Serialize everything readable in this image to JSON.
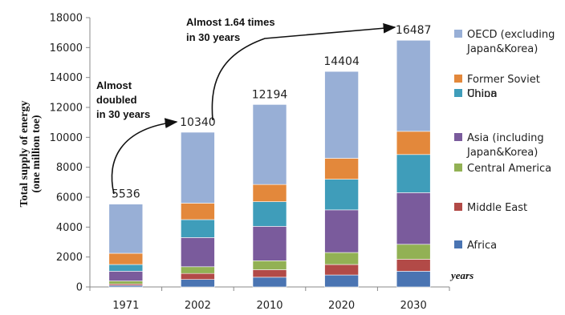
{
  "chart_data": {
    "type": "bar",
    "stacked": true,
    "categories": [
      "1971",
      "2002",
      "2010",
      "2020",
      "2030"
    ],
    "ylabel": "Total supply of energy (one million toe)",
    "ylim": [
      0,
      18000
    ],
    "yticks": [
      0,
      2000,
      4000,
      6000,
      8000,
      10000,
      12000,
      14000,
      16000,
      18000
    ],
    "series": [
      {
        "name": "Africa",
        "color": "#4a74b2",
        "values": [
          100,
          500,
          650,
          800,
          1050
        ]
      },
      {
        "name": "Middle East",
        "color": "#b24a47",
        "values": [
          100,
          400,
          500,
          700,
          800
        ]
      },
      {
        "name": "Central America",
        "color": "#92b154",
        "values": [
          200,
          450,
          600,
          800,
          1000
        ]
      },
      {
        "name": "Asia (including Japan&Korea)",
        "color": "#7a5b9c",
        "values": [
          650,
          1950,
          2300,
          2850,
          3450
        ]
      },
      {
        "name": "China",
        "color": "#3f9dba",
        "values": [
          450,
          1200,
          1650,
          2050,
          2550
        ]
      },
      {
        "name": "Former Soviet Union",
        "color": "#e3883b",
        "values": [
          750,
          1100,
          1150,
          1400,
          1550
        ]
      },
      {
        "name": "OECD (excluding Japan&Korea)",
        "color": "#98afd6",
        "values": [
          3286,
          4740,
          5344,
          5804,
          6087
        ]
      }
    ],
    "totals": [
      "5536",
      "10340",
      "12194",
      "14404",
      "16487"
    ],
    "legend_position": "right",
    "grid": false
  },
  "annotations": {
    "first_lines": [
      "Almost",
      "doubled",
      "in 30 years"
    ],
    "second_lines": [
      "Almost 1.64 times",
      "in 30 years"
    ],
    "years_label": "years"
  },
  "axis_title_lines": [
    "Total supply of energy",
    "(one million toe)"
  ],
  "legend_lines": [
    [
      "OECD (excluding",
      "Japan&Korea)"
    ],
    [
      "Former Soviet",
      "Union"
    ],
    [
      "China"
    ],
    [
      "Asia (including",
      "Japan&Korea)"
    ],
    [
      "Central America"
    ],
    [
      "Middle East"
    ],
    [
      "Africa"
    ]
  ]
}
